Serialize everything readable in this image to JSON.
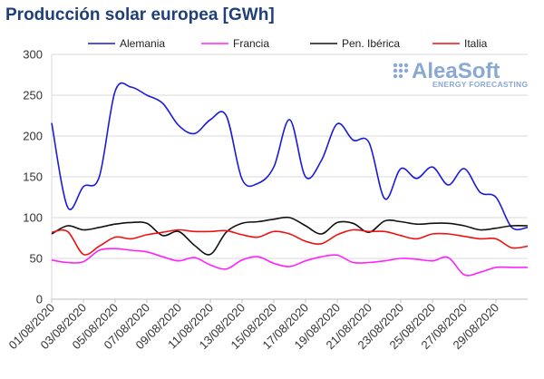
{
  "title": "Producción solar europea [GWh]",
  "logo": {
    "name": "AleaSoft",
    "tagline": "ENERGY FORECASTING"
  },
  "chart_data": {
    "type": "line",
    "title": "Producción solar europea [GWh]",
    "ylim": [
      0,
      300
    ],
    "yticks": [
      0,
      50,
      100,
      150,
      200,
      250,
      300
    ],
    "grid": true,
    "legend_position": "top",
    "x": [
      "01/08/2020",
      "02/08/2020",
      "03/08/2020",
      "04/08/2020",
      "05/08/2020",
      "06/08/2020",
      "07/08/2020",
      "08/08/2020",
      "09/08/2020",
      "10/08/2020",
      "11/08/2020",
      "12/08/2020",
      "13/08/2020",
      "14/08/2020",
      "15/08/2020",
      "16/08/2020",
      "17/08/2020",
      "18/08/2020",
      "19/08/2020",
      "20/08/2020",
      "21/08/2020",
      "22/08/2020",
      "23/08/2020",
      "24/08/2020",
      "25/08/2020",
      "26/08/2020",
      "27/08/2020",
      "28/08/2020",
      "29/08/2020",
      "30/08/2020",
      "31/08/2020"
    ],
    "xtick_labels": [
      "01/08/2020",
      "03/08/2020",
      "05/08/2020",
      "07/08/2020",
      "09/08/2020",
      "11/08/2020",
      "13/08/2020",
      "15/08/2020",
      "17/08/2020",
      "19/08/2020",
      "21/08/2020",
      "23/08/2020",
      "25/08/2020",
      "27/08/2020",
      "29/08/2020"
    ],
    "series": [
      {
        "name": "Alemania",
        "color": "#1a1adc",
        "values": [
          216,
          113,
          138,
          150,
          255,
          260,
          250,
          240,
          213,
          203,
          220,
          225,
          147,
          142,
          162,
          220,
          150,
          170,
          215,
          195,
          192,
          123,
          160,
          148,
          162,
          140,
          160,
          131,
          125,
          88,
          88
        ]
      },
      {
        "name": "Francia",
        "color": "#ff22ff",
        "values": [
          48,
          45,
          46,
          60,
          62,
          60,
          58,
          52,
          47,
          51,
          42,
          37,
          48,
          52,
          44,
          40,
          47,
          52,
          54,
          45,
          45,
          47,
          50,
          49,
          47,
          51,
          30,
          33,
          39,
          39,
          39
        ]
      },
      {
        "name": "Pen. Ibérica",
        "color": "#111111",
        "values": [
          80,
          90,
          85,
          88,
          92,
          94,
          93,
          78,
          83,
          66,
          55,
          82,
          93,
          95,
          98,
          100,
          90,
          80,
          94,
          93,
          82,
          96,
          95,
          92,
          93,
          93,
          90,
          85,
          87,
          90,
          90
        ]
      },
      {
        "name": "Italia",
        "color": "#ee1111",
        "values": [
          82,
          83,
          55,
          65,
          76,
          74,
          79,
          82,
          85,
          83,
          83,
          84,
          79,
          76,
          83,
          80,
          71,
          68,
          79,
          85,
          83,
          83,
          78,
          74,
          80,
          80,
          77,
          74,
          74,
          63,
          65
        ]
      }
    ]
  }
}
